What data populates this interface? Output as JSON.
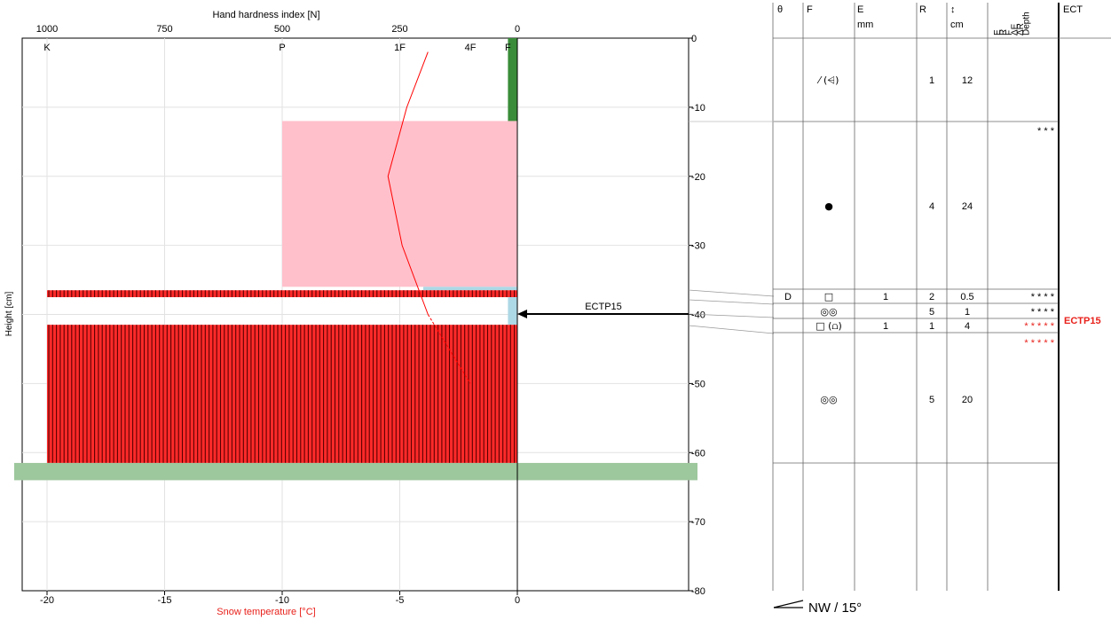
{
  "chart_data": {
    "type": "snow-profile",
    "top_axis": {
      "title": "Hand hardness index [N]",
      "ticks": [
        "1000",
        "750",
        "500",
        "250",
        "0"
      ],
      "values": [
        1000,
        750,
        500,
        250,
        0
      ],
      "hand_hardness_labels": [
        {
          "label": "K",
          "value": 1000
        },
        {
          "label": "P",
          "value": 500
        },
        {
          "label": "1F",
          "value": 250
        },
        {
          "label": "4F",
          "value": 100
        },
        {
          "label": "F",
          "value": 20
        }
      ]
    },
    "bottom_axis": {
      "title": "Snow temperature [°C]",
      "ticks": [
        "-20",
        "-15",
        "-10",
        "-5",
        "0"
      ],
      "values": [
        -20,
        -15,
        -10,
        -5,
        0
      ]
    },
    "left_axis": {
      "label": "Height [cm]"
    },
    "right_axis": {
      "ticks": [
        "0",
        "-10",
        "-20",
        "-30",
        "-40",
        "-50",
        "-60",
        "-70",
        "-80"
      ],
      "values": [
        0,
        -10,
        -20,
        -30,
        -40,
        -50,
        -60,
        -70,
        -80
      ],
      "ylim": [
        -80,
        0
      ]
    },
    "layers": [
      {
        "top": 0,
        "bottom": -12,
        "hardness": 20,
        "color": "#3a8c3a",
        "grain": "ppnd"
      },
      {
        "top": -12,
        "bottom": -36,
        "hardness": 500,
        "color": "#ffc0cb",
        "grain": "round"
      },
      {
        "top": -36,
        "bottom": -36.5,
        "hardness": 200,
        "color": "#add8e6",
        "grain": "faceted"
      },
      {
        "top": -36.5,
        "bottom": -37.5,
        "hardness": 1000,
        "color": "#ff2a2a",
        "grain": "melt-freeze",
        "hatched": true
      },
      {
        "top": -37.5,
        "bottom": -41.5,
        "hardness": 20,
        "color": "#add8e6",
        "grain": "faceted-rounded"
      },
      {
        "top": -41.5,
        "bottom": -61.5,
        "hardness": 1000,
        "color": "#ff2a2a",
        "grain": "melt-freeze",
        "hatched": true
      }
    ],
    "ground_band": {
      "top": -61.5,
      "bottom": -64,
      "color": "#9dc79d"
    },
    "temperature_profile": {
      "color": "#ff0000",
      "points": [
        {
          "t": -3.8,
          "h": -2
        },
        {
          "t": -4.7,
          "h": -10
        },
        {
          "t": -5.5,
          "h": -20
        },
        {
          "t": -4.9,
          "h": -30
        },
        {
          "t": -3.8,
          "h": -40
        },
        {
          "t": -2.0,
          "h": -50
        }
      ]
    },
    "stability_test": {
      "label": "ECTP15",
      "depth": -40
    }
  },
  "table": {
    "headers": {
      "theta": "θ",
      "f": "F",
      "e": "E",
      "e_unit": "mm",
      "r": "R",
      "thickness": "↕",
      "thickness_unit": "cm",
      "rotated": [
        "E",
        "R",
        "F",
        "ΔE",
        "ΔR",
        "Depth"
      ],
      "ect": "ECT"
    },
    "rows": [
      {
        "theta": "",
        "f": "⁄ (⩤)",
        "e": "",
        "r": "1",
        "thickness": "12",
        "stars": ""
      },
      {
        "theta": "",
        "f": "●",
        "e": "",
        "r": "4",
        "thickness": "24",
        "stars": "*     * *"
      },
      {
        "theta": "D",
        "f": "□",
        "e": "1",
        "r": "2",
        "thickness": "0.5",
        "stars": "* * * *"
      },
      {
        "theta": "",
        "f": "◎◎",
        "e": "",
        "r": "5",
        "thickness": "1",
        "stars": "* * * *"
      },
      {
        "theta": "",
        "f": "□ (⩍)",
        "e": "1",
        "r": "1",
        "thickness": "4",
        "stars": "* * * * *"
      },
      {
        "theta": "",
        "f": "◎◎",
        "e": "",
        "r": "5",
        "thickness": "20",
        "stars": "* * * * *"
      }
    ],
    "ect_result": "ECTP15"
  },
  "aspect": "NW / 15°"
}
